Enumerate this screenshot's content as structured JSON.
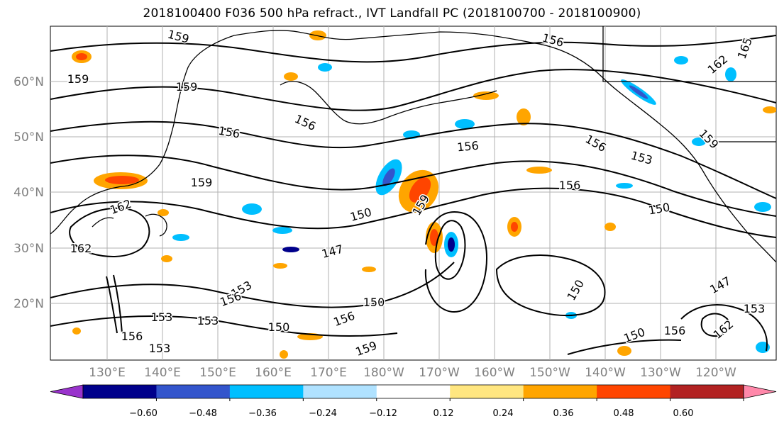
{
  "title": "2018100400 F036 500 hPa refract., IVT Landfall PC (2018100700 - 2018100900)",
  "map": {
    "lat_labels": [
      "60°N",
      "50°N",
      "40°N",
      "30°N",
      "20°N"
    ],
    "lon_labels": [
      "130°E",
      "140°E",
      "150°E",
      "160°E",
      "170°E",
      "180°W",
      "170°W",
      "160°W",
      "150°W",
      "140°W",
      "130°W",
      "120°W"
    ],
    "contour_labels": [
      "159",
      "159",
      "159",
      "156",
      "156",
      "156",
      "156",
      "156",
      "153",
      "159",
      "162",
      "165",
      "150",
      "147",
      "150",
      "153",
      "153",
      "156",
      "156",
      "159",
      "153",
      "150",
      "150",
      "147",
      "153",
      "156",
      "156",
      "162",
      "159",
      "162",
      "150",
      "150",
      "159",
      "156",
      "153",
      "162"
    ],
    "colors": {
      "land_line": "#000000",
      "grid": "#b0b0b0",
      "tick_label": "#808080"
    }
  },
  "colorbar": {
    "tick_labels": [
      "−0.60",
      "−0.48",
      "−0.36",
      "−0.24",
      "−0.12",
      "0.12",
      "0.24",
      "0.36",
      "0.48",
      "0.60"
    ],
    "colors": [
      "#9933cc",
      "#00008b",
      "#3355cc",
      "#00bfff",
      "#b0e2ff",
      "#ffffff",
      "#ffe680",
      "#ffa500",
      "#ff4500",
      "#b22222",
      "#ff88aa"
    ]
  }
}
